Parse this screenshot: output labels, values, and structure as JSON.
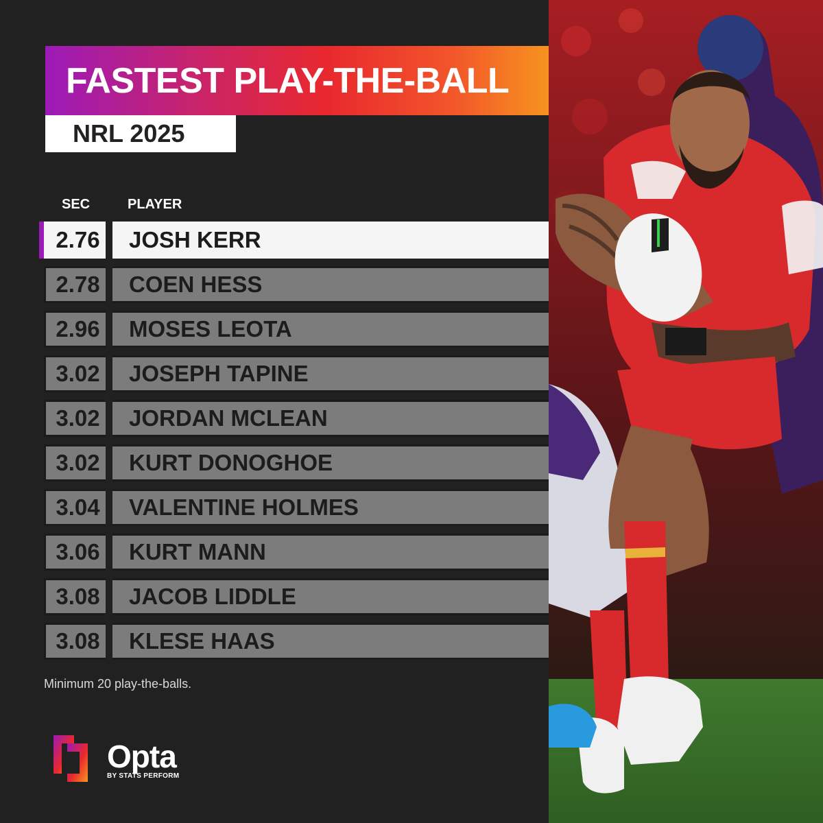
{
  "header": {
    "title": "FASTEST PLAY-THE-BALL",
    "subtitle": "NRL 2025"
  },
  "table": {
    "columns": {
      "sec": "SEC",
      "player": "PLAYER"
    },
    "rows": [
      {
        "sec": "2.76",
        "player": "JOSH KERR"
      },
      {
        "sec": "2.78",
        "player": "COEN HESS"
      },
      {
        "sec": "2.96",
        "player": "MOSES LEOTA"
      },
      {
        "sec": "3.02",
        "player": "JOSEPH TAPINE"
      },
      {
        "sec": "3.02",
        "player": "JORDAN MCLEAN"
      },
      {
        "sec": "3.02",
        "player": "KURT DONOGHOE"
      },
      {
        "sec": "3.04",
        "player": "VALENTINE HOLMES"
      },
      {
        "sec": "3.06",
        "player": "KURT MANN"
      },
      {
        "sec": "3.08",
        "player": "JACOB LIDDLE"
      },
      {
        "sec": "3.08",
        "player": "KLESE HAAS"
      }
    ]
  },
  "footnote": "Minimum 20 play-the-balls.",
  "brand": {
    "name": "Opta",
    "byline": "BY STATS PERFORM"
  },
  "photo": {
    "icon": "rugby-player-photo"
  },
  "colors": {
    "background": "#212121",
    "row": "#7c7c7c",
    "highlight_row": "#f5f5f5",
    "accent": "#9c1ab8",
    "gradient": [
      "#9c1ab8",
      "#e8282e",
      "#f7961f"
    ]
  }
}
